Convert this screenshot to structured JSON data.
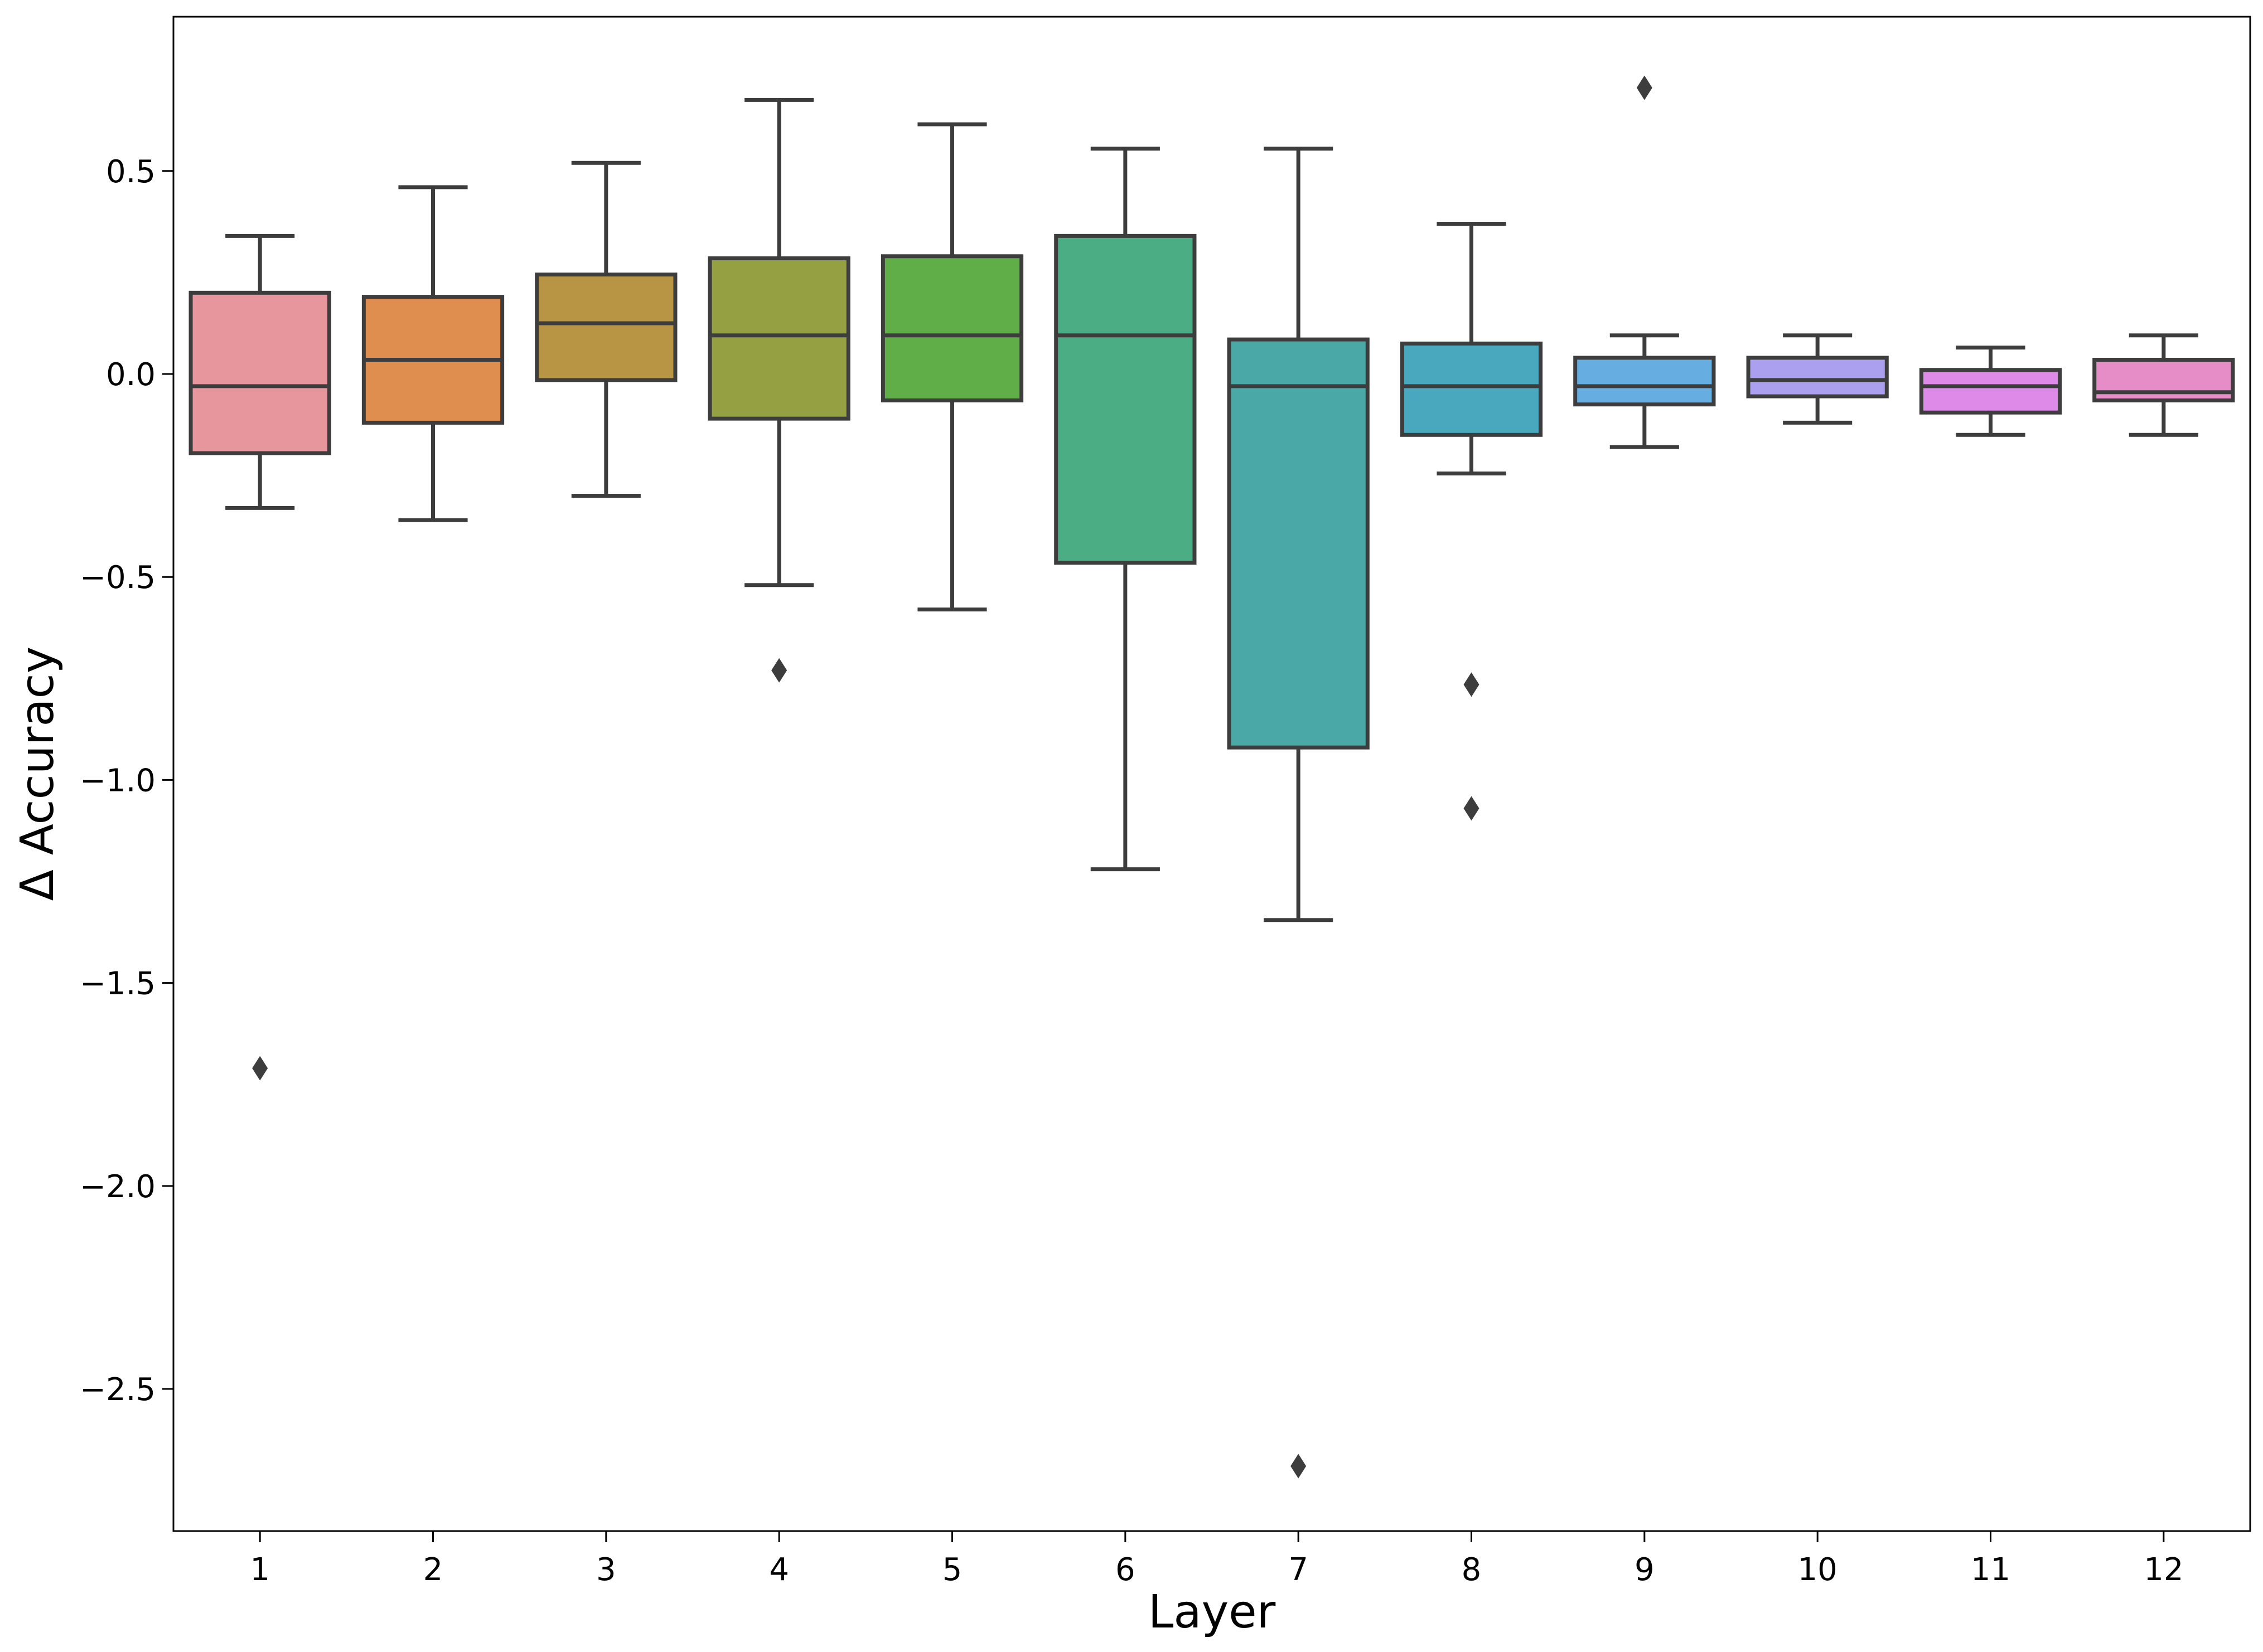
{
  "chart_data": {
    "type": "box",
    "title": "",
    "xlabel": "Layer",
    "ylabel": "Δ Accuracy",
    "ylim": [
      -2.85,
      0.88
    ],
    "yticks": [
      0.5,
      0.0,
      -0.5,
      -1.0,
      -1.5,
      -2.0,
      -2.5
    ],
    "ytick_labels": [
      "0.5",
      "0.0",
      "−0.5",
      "−1.0",
      "−1.5",
      "−2.0",
      "−2.5"
    ],
    "categories": [
      "1",
      "2",
      "3",
      "4",
      "5",
      "6",
      "7",
      "8",
      "9",
      "10",
      "11",
      "12"
    ],
    "boxes": [
      {
        "layer": "1",
        "whisker_low": -0.33,
        "q1": -0.195,
        "median": -0.03,
        "q3": 0.2,
        "whisker_high": 0.34,
        "outliers": [
          -1.71
        ],
        "color": "#e8969e"
      },
      {
        "layer": "2",
        "whisker_low": -0.36,
        "q1": -0.12,
        "median": 0.035,
        "q3": 0.19,
        "whisker_high": 0.46,
        "outliers": [],
        "color": "#e08e4f"
      },
      {
        "layer": "3",
        "whisker_low": -0.3,
        "q1": -0.015,
        "median": 0.125,
        "q3": 0.245,
        "whisker_high": 0.52,
        "outliers": [],
        "color": "#b89445"
      },
      {
        "layer": "4",
        "whisker_low": -0.52,
        "q1": -0.11,
        "median": 0.095,
        "q3": 0.285,
        "whisker_high": 0.675,
        "outliers": [
          -0.73
        ],
        "color": "#95a043"
      },
      {
        "layer": "5",
        "whisker_low": -0.58,
        "q1": -0.065,
        "median": 0.095,
        "q3": 0.29,
        "whisker_high": 0.615,
        "outliers": [],
        "color": "#5fae48"
      },
      {
        "layer": "6",
        "whisker_low": -1.22,
        "q1": -0.465,
        "median": 0.095,
        "q3": 0.34,
        "whisker_high": 0.555,
        "outliers": [],
        "color": "#4aad84"
      },
      {
        "layer": "7",
        "whisker_low": -1.345,
        "q1": -0.92,
        "median": -0.03,
        "q3": 0.085,
        "whisker_high": 0.555,
        "outliers": [
          -2.69
        ],
        "color": "#4aa9a6"
      },
      {
        "layer": "8",
        "whisker_low": -0.245,
        "q1": -0.15,
        "median": -0.03,
        "q3": 0.075,
        "whisker_high": 0.37,
        "outliers": [
          -0.765,
          -1.07
        ],
        "color": "#4aa8be"
      },
      {
        "layer": "9",
        "whisker_low": -0.18,
        "q1": -0.075,
        "median": -0.03,
        "q3": 0.04,
        "whisker_high": 0.095,
        "outliers": [
          0.705
        ],
        "color": "#66aee2"
      },
      {
        "layer": "10",
        "whisker_low": -0.12,
        "q1": -0.055,
        "median": -0.015,
        "q3": 0.04,
        "whisker_high": 0.095,
        "outliers": [],
        "color": "#ab9ff0"
      },
      {
        "layer": "11",
        "whisker_low": -0.15,
        "q1": -0.095,
        "median": -0.03,
        "q3": 0.01,
        "whisker_high": 0.065,
        "outliers": [],
        "color": "#dd8ae8"
      },
      {
        "layer": "12",
        "whisker_low": -0.15,
        "q1": -0.065,
        "median": -0.045,
        "q3": 0.035,
        "whisker_high": 0.095,
        "outliers": [],
        "color": "#e68cc6"
      }
    ]
  }
}
